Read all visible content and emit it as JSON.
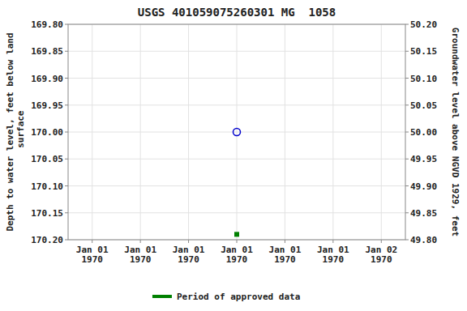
{
  "chart_data": {
    "type": "scatter",
    "title": "USGS 401059075260301 MG  1058",
    "y_label": "Depth to water level, feet below land\n surface",
    "y2_label": "Groundwater level above NGVD 1929, feet",
    "categories": [
      "Jan 01\n1970",
      "Jan 01\n1970",
      "Jan 01\n1970",
      "Jan 01\n1970",
      "Jan 01\n1970",
      "Jan 01\n1970",
      "Jan 02\n1970"
    ],
    "series": [
      {
        "color": "#0000cc",
        "marker": "circle",
        "values": [
          null,
          null,
          null,
          170.0,
          null,
          null,
          null
        ]
      },
      {
        "color": "#008000",
        "marker": "square",
        "values": [
          null,
          null,
          null,
          170.19,
          null,
          null,
          null
        ]
      },
      {
        "name": "Period of approved data",
        "type": "line",
        "line_style": "solid",
        "color": "#008000",
        "values": [
          null,
          null,
          null,
          null,
          null,
          null,
          null
        ]
      }
    ],
    "ylim": [
      170.2,
      169.8
    ],
    "yticks": [
      {
        "value": 169.8,
        "label": "169.80"
      },
      {
        "value": 169.85,
        "label": "169.85"
      },
      {
        "value": 169.9,
        "label": "169.90"
      },
      {
        "value": 169.95,
        "label": "169.95"
      },
      {
        "value": 170.0,
        "label": "170.00"
      },
      {
        "value": 170.05,
        "label": "170.05"
      },
      {
        "value": 170.1,
        "label": "170.10"
      },
      {
        "value": 170.15,
        "label": "170.15"
      },
      {
        "value": 170.2,
        "label": "170.20"
      }
    ],
    "y2lim": [
      49.8,
      50.2
    ],
    "y2ticks": [
      {
        "value": 50.2,
        "label": "50.20"
      },
      {
        "value": 50.15,
        "label": "50.15"
      },
      {
        "value": 50.1,
        "label": "50.10"
      },
      {
        "value": 50.05,
        "label": "50.05"
      },
      {
        "value": 50.0,
        "label": "50.00"
      },
      {
        "value": 49.95,
        "label": "49.95"
      },
      {
        "value": 49.9,
        "label": "49.90"
      },
      {
        "value": 49.85,
        "label": "49.85"
      },
      {
        "value": 49.8,
        "label": "49.80"
      }
    ],
    "grid": true,
    "legend": "bottom"
  }
}
